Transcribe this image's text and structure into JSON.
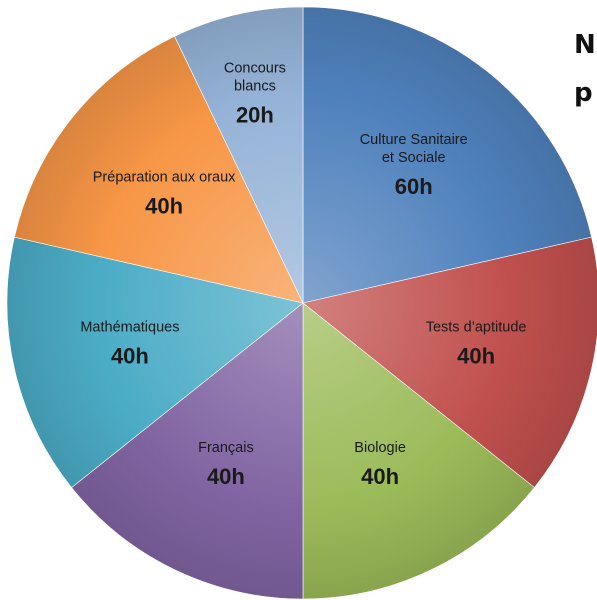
{
  "side_text": [
    "N",
    "p"
  ],
  "chart_data": {
    "type": "pie",
    "unit": "h",
    "slices": [
      {
        "label_lines": [
          "Culture Sanitaire",
          "et Sociale"
        ],
        "value": 60,
        "value_label": "60h",
        "color": "#4f81bd"
      },
      {
        "label_lines": [
          "Tests d’aptitude"
        ],
        "value": 40,
        "value_label": "40h",
        "color": "#c0504d"
      },
      {
        "label_lines": [
          "Biologie"
        ],
        "value": 40,
        "value_label": "40h",
        "color": "#9bbb59"
      },
      {
        "label_lines": [
          "Français"
        ],
        "value": 40,
        "value_label": "40h",
        "color": "#8064a2"
      },
      {
        "label_lines": [
          "Mathématiques"
        ],
        "value": 40,
        "value_label": "40h",
        "color": "#4bacc6"
      },
      {
        "label_lines": [
          "Préparation aux oraux"
        ],
        "value": 40,
        "value_label": "40h",
        "color": "#f79646"
      },
      {
        "label_lines": [
          "Concours",
          "blancs"
        ],
        "value": 20,
        "value_label": "20h",
        "color": "#95b3d7"
      }
    ]
  }
}
